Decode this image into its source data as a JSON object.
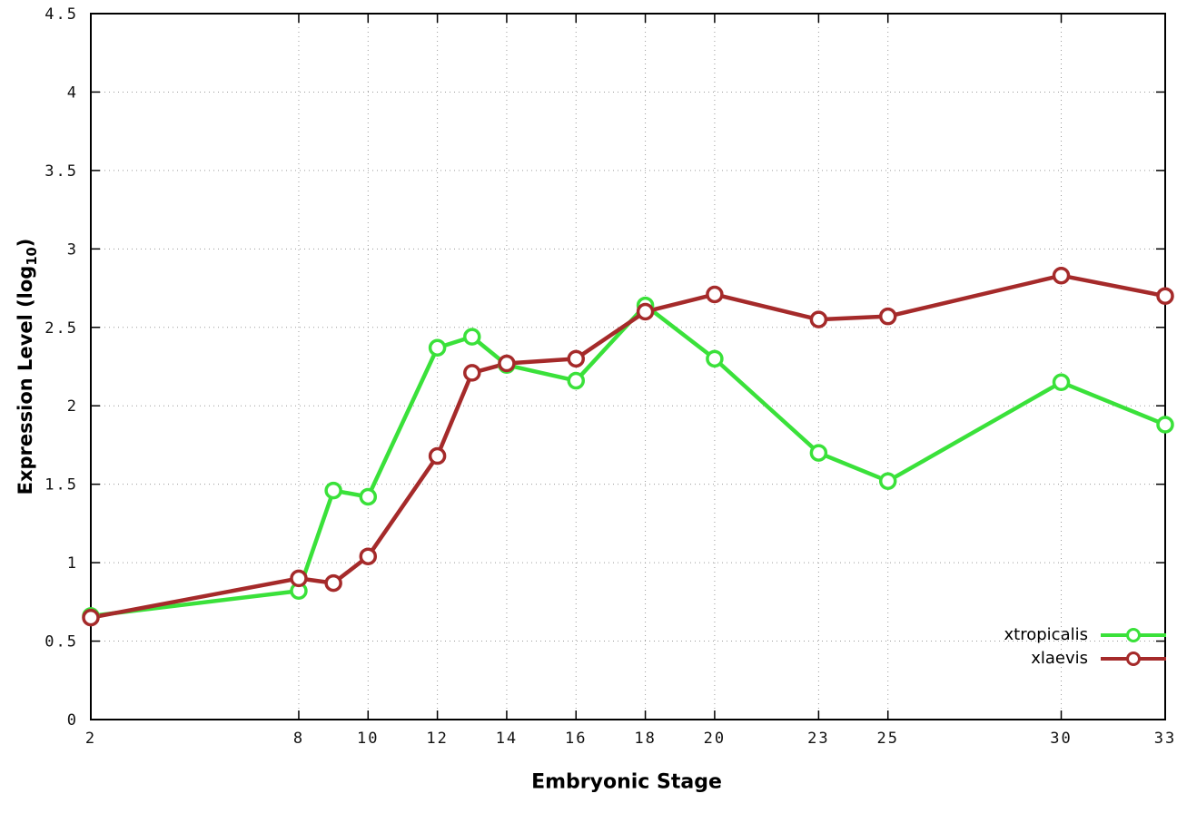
{
  "chart_data": {
    "type": "line",
    "title": "",
    "xlabel": "Embryonic Stage",
    "ylabel": "Expression Level (log10)",
    "ylabel_parts": {
      "pre": "Expression Level (log",
      "sub": "10",
      "post": ")"
    },
    "xlim": [
      2,
      33
    ],
    "ylim": [
      0,
      4.5
    ],
    "x_ticks": [
      2,
      8,
      10,
      12,
      14,
      16,
      18,
      20,
      23,
      25,
      30,
      33
    ],
    "y_ticks": [
      0,
      0.5,
      1,
      1.5,
      2,
      2.5,
      3,
      3.5,
      4,
      4.5
    ],
    "grid": true,
    "legend_position": "bottom-right",
    "marker": "open-circle",
    "x": [
      2,
      8,
      9,
      10,
      12,
      13,
      14,
      16,
      18,
      20,
      23,
      25,
      30,
      33
    ],
    "series": [
      {
        "name": "xtropicalis",
        "color": "#3ae13a",
        "values": [
          0.66,
          0.82,
          1.46,
          1.42,
          2.37,
          2.44,
          2.26,
          2.16,
          2.64,
          2.3,
          1.7,
          1.52,
          2.15,
          1.88
        ]
      },
      {
        "name": "xlaevis",
        "color": "#a52a2a",
        "values": [
          0.65,
          0.9,
          0.87,
          1.04,
          1.68,
          2.21,
          2.27,
          2.3,
          2.6,
          2.71,
          2.55,
          2.57,
          2.83,
          2.7
        ]
      }
    ]
  }
}
